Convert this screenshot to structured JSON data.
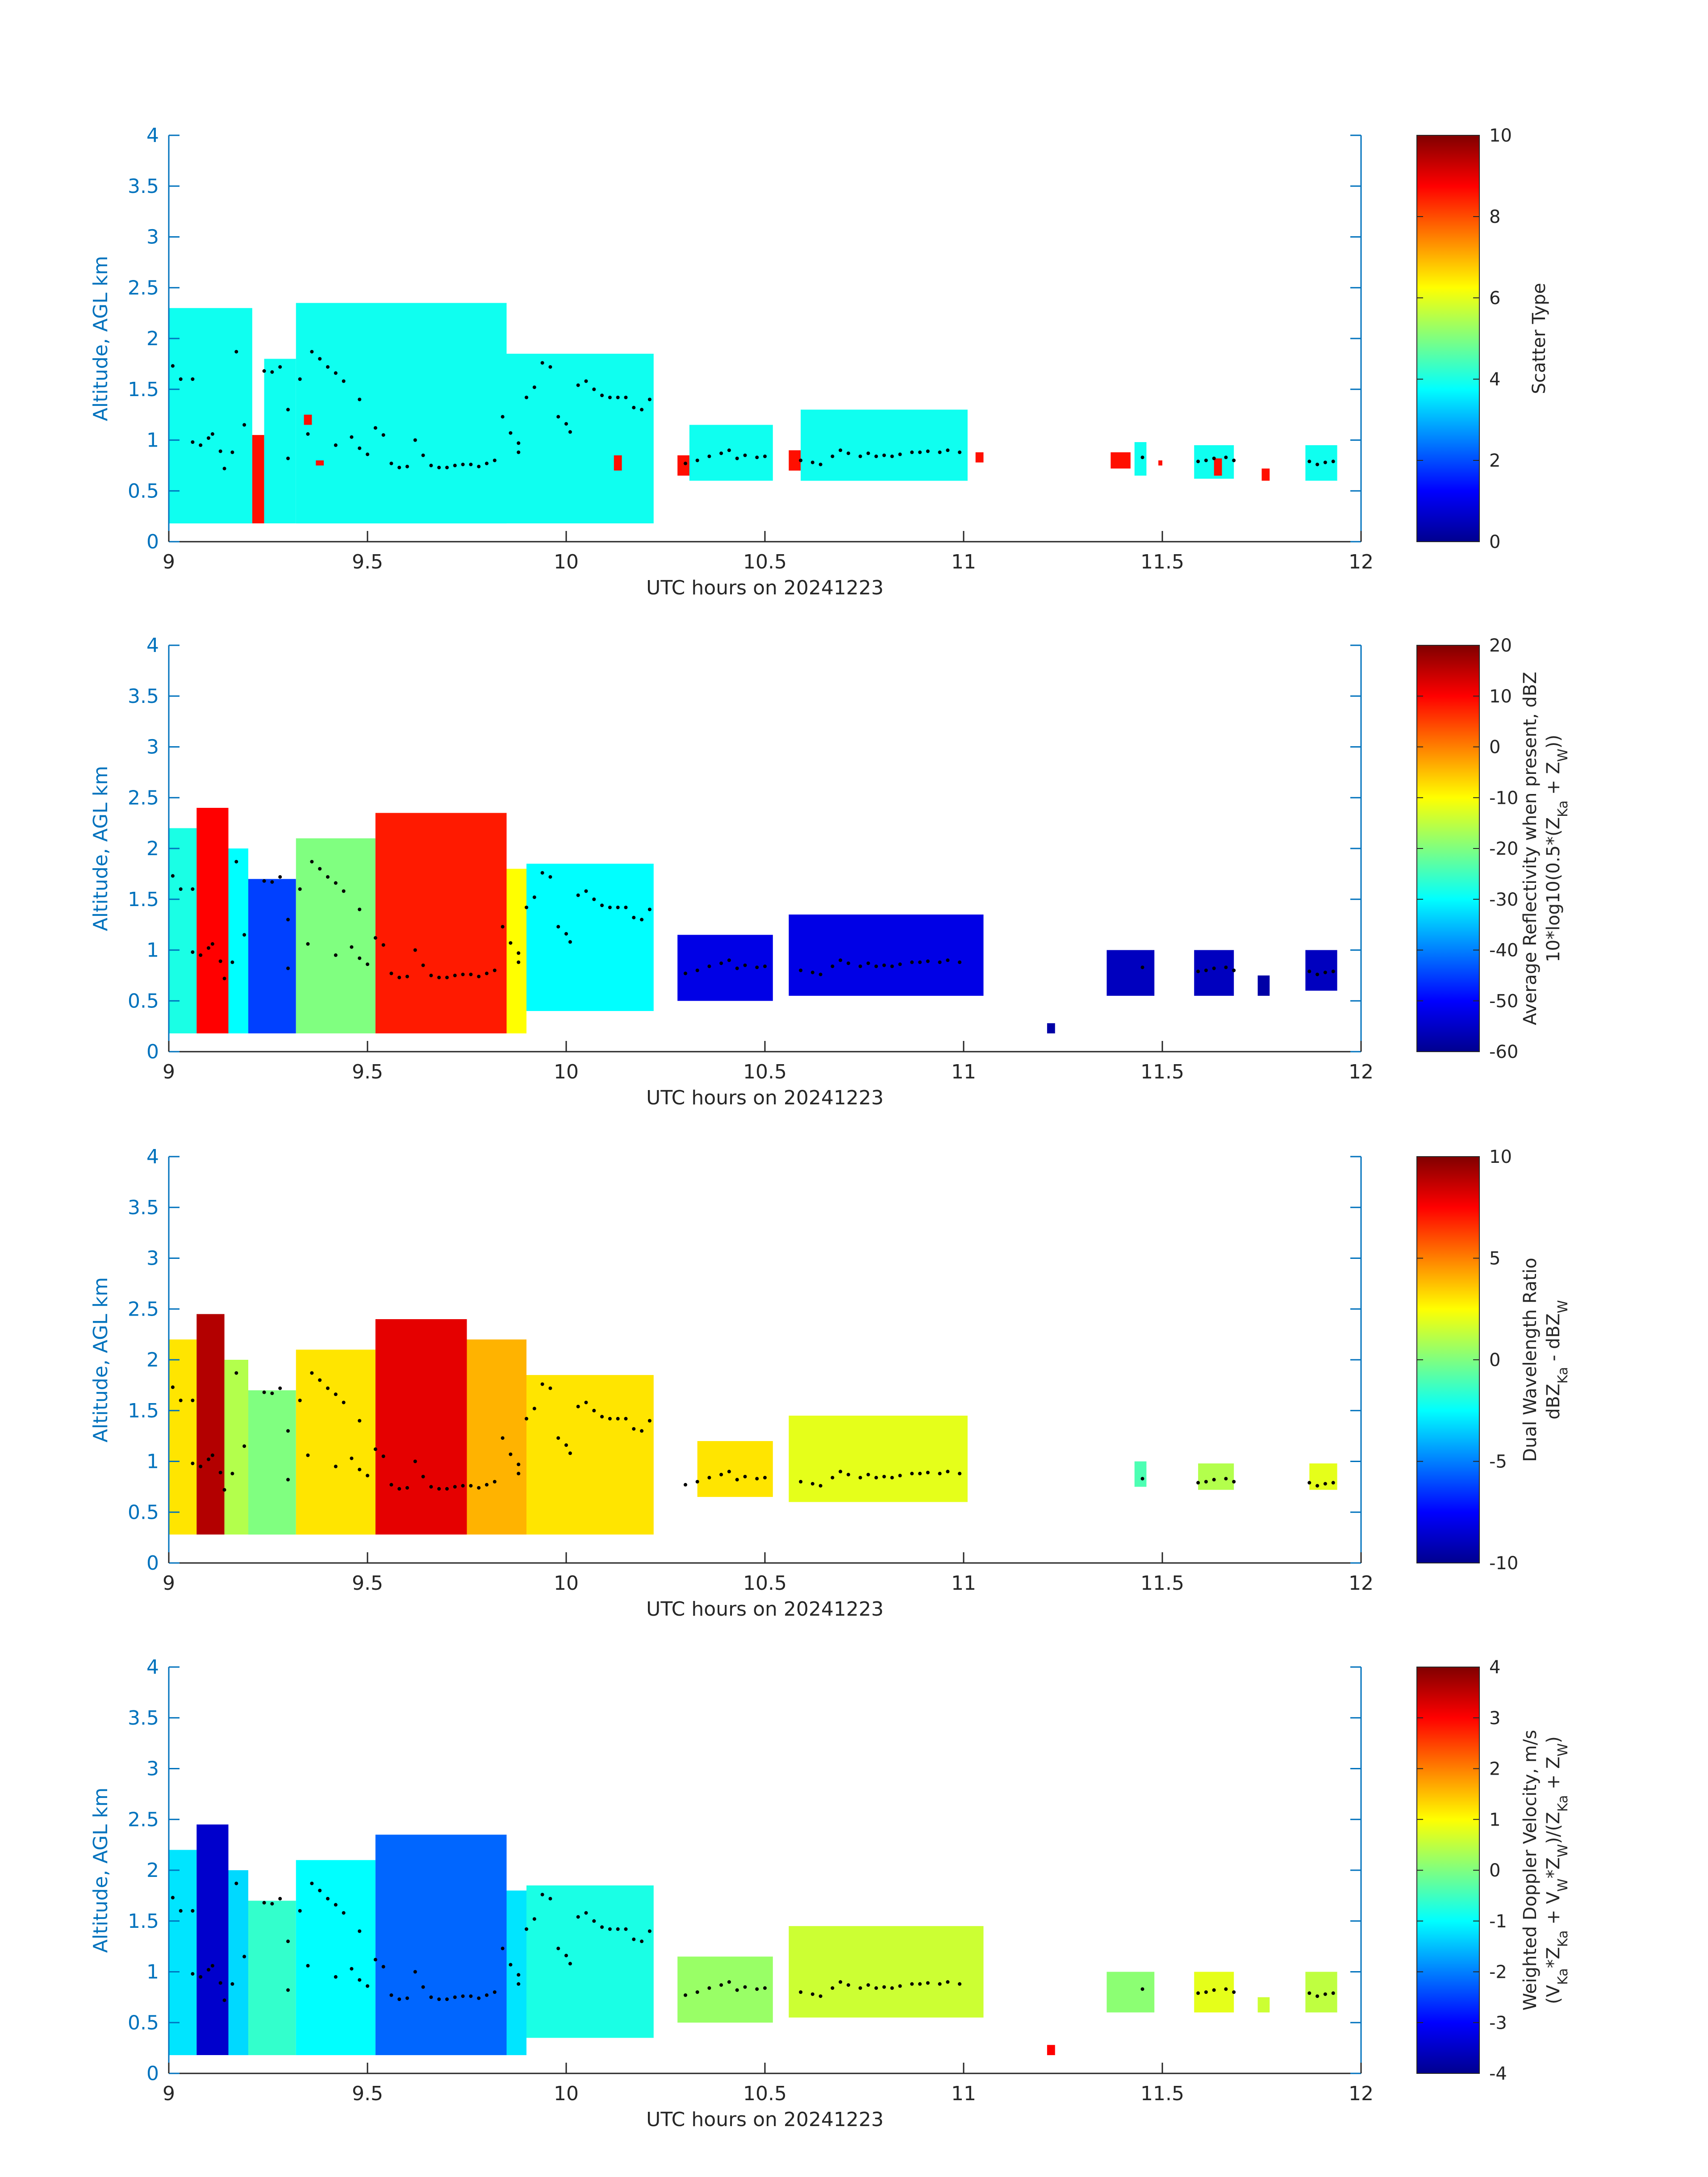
{
  "chart_data": [
    {
      "type": "heatmap",
      "panel": "scatter-type",
      "xlabel": "UTC hours on 20241223",
      "ylabel": "Altitude, AGL km",
      "xlim": [
        9,
        12
      ],
      "ylim": [
        0,
        4
      ],
      "xticks": [
        "9",
        "9.5",
        "10",
        "10.5",
        "11",
        "11.5",
        "12"
      ],
      "yticks": [
        "0",
        "0.5",
        "1",
        "1.5",
        "2",
        "2.5",
        "3",
        "3.5",
        "4"
      ],
      "colorbar": {
        "label_lines": [
          "Scatter Type"
        ],
        "range": [
          0,
          10
        ],
        "ticks": [
          "0",
          "2",
          "4",
          "6",
          "8",
          "10"
        ]
      },
      "cells": [
        {
          "x": [
            9.0,
            9.21
          ],
          "y": [
            0.18,
            2.3
          ],
          "value": 3.9
        },
        {
          "x": [
            9.21,
            9.24
          ],
          "y": [
            0.18,
            1.05
          ],
          "value": 8.6
        },
        {
          "x": [
            9.24,
            9.32
          ],
          "y": [
            0.18,
            1.8
          ],
          "value": 3.9
        },
        {
          "x": [
            9.32,
            9.85
          ],
          "y": [
            0.18,
            2.35
          ],
          "value": 3.9
        },
        {
          "x": [
            9.85,
            10.22
          ],
          "y": [
            0.18,
            1.85
          ],
          "value": 3.9
        },
        {
          "x": [
            9.34,
            9.36
          ],
          "y": [
            1.15,
            1.25
          ],
          "value": 8.6
        },
        {
          "x": [
            9.37,
            9.39
          ],
          "y": [
            0.75,
            0.8
          ],
          "value": 8.6
        },
        {
          "x": [
            10.12,
            10.14
          ],
          "y": [
            0.7,
            0.85
          ],
          "value": 8.6
        },
        {
          "x": [
            10.28,
            10.31
          ],
          "y": [
            0.65,
            0.85
          ],
          "value": 8.6
        },
        {
          "x": [
            10.31,
            10.52
          ],
          "y": [
            0.6,
            1.15
          ],
          "value": 3.9
        },
        {
          "x": [
            10.56,
            10.59
          ],
          "y": [
            0.7,
            0.9
          ],
          "value": 8.6
        },
        {
          "x": [
            10.59,
            11.01
          ],
          "y": [
            0.6,
            1.3
          ],
          "value": 3.9
        },
        {
          "x": [
            11.03,
            11.05
          ],
          "y": [
            0.78,
            0.88
          ],
          "value": 8.6
        },
        {
          "x": [
            11.37,
            11.42
          ],
          "y": [
            0.72,
            0.88
          ],
          "value": 8.6
        },
        {
          "x": [
            11.43,
            11.46
          ],
          "y": [
            0.65,
            0.98
          ],
          "value": 3.9
        },
        {
          "x": [
            11.49,
            11.5
          ],
          "y": [
            0.75,
            0.8
          ],
          "value": 8.6
        },
        {
          "x": [
            11.58,
            11.68
          ],
          "y": [
            0.62,
            0.95
          ],
          "value": 3.9
        },
        {
          "x": [
            11.63,
            11.65
          ],
          "y": [
            0.65,
            0.82
          ],
          "value": 8.6
        },
        {
          "x": [
            11.75,
            11.77
          ],
          "y": [
            0.6,
            0.72
          ],
          "value": 8.6
        },
        {
          "x": [
            11.86,
            11.94
          ],
          "y": [
            0.6,
            0.95
          ],
          "value": 3.9
        }
      ]
    },
    {
      "type": "heatmap",
      "panel": "average-reflectivity",
      "xlabel": "UTC hours on 20241223",
      "ylabel": "Altitude, AGL km",
      "xlim": [
        9,
        12
      ],
      "ylim": [
        0,
        4
      ],
      "xticks": [
        "9",
        "9.5",
        "10",
        "10.5",
        "11",
        "11.5",
        "12"
      ],
      "yticks": [
        "0",
        "0.5",
        "1",
        "1.5",
        "2",
        "2.5",
        "3",
        "3.5",
        "4"
      ],
      "colorbar": {
        "label_lines": [
          "Average Reflectivity when present, dBZ",
          "10*log10(0.5*(Z_Ka + Z_W))"
        ],
        "range": [
          -60,
          20
        ],
        "ticks": [
          "-60",
          "-50",
          "-40",
          "-30",
          "-20",
          "-10",
          "0",
          "10",
          "20"
        ]
      },
      "cells": [
        {
          "x": [
            9.0,
            9.07
          ],
          "y": [
            0.18,
            2.2
          ],
          "value": -28
        },
        {
          "x": [
            9.07,
            9.15
          ],
          "y": [
            0.18,
            2.4
          ],
          "value": 10
        },
        {
          "x": [
            9.15,
            9.2
          ],
          "y": [
            0.18,
            2.0
          ],
          "value": -30
        },
        {
          "x": [
            9.2,
            9.32
          ],
          "y": [
            0.18,
            1.7
          ],
          "value": -45
        },
        {
          "x": [
            9.32,
            9.52
          ],
          "y": [
            0.18,
            2.1
          ],
          "value": -20
        },
        {
          "x": [
            9.52,
            9.85
          ],
          "y": [
            0.18,
            2.35
          ],
          "value": 8
        },
        {
          "x": [
            9.85,
            9.9
          ],
          "y": [
            0.18,
            1.8
          ],
          "value": -10
        },
        {
          "x": [
            9.9,
            10.22
          ],
          "y": [
            0.4,
            1.85
          ],
          "value": -30
        },
        {
          "x": [
            10.28,
            10.52
          ],
          "y": [
            0.5,
            1.15
          ],
          "value": -52
        },
        {
          "x": [
            10.56,
            11.05
          ],
          "y": [
            0.55,
            1.35
          ],
          "value": -52
        },
        {
          "x": [
            11.21,
            11.23
          ],
          "y": [
            0.18,
            0.28
          ],
          "value": -57
        },
        {
          "x": [
            11.36,
            11.48
          ],
          "y": [
            0.55,
            1.0
          ],
          "value": -55
        },
        {
          "x": [
            11.58,
            11.68
          ],
          "y": [
            0.55,
            1.0
          ],
          "value": -55
        },
        {
          "x": [
            11.74,
            11.77
          ],
          "y": [
            0.55,
            0.75
          ],
          "value": -57
        },
        {
          "x": [
            11.86,
            11.94
          ],
          "y": [
            0.6,
            1.0
          ],
          "value": -55
        }
      ]
    },
    {
      "type": "heatmap",
      "panel": "dual-wavelength-ratio",
      "xlabel": "UTC hours on 20241223",
      "ylabel": "Altitude, AGL km",
      "xlim": [
        9,
        12
      ],
      "ylim": [
        0,
        4
      ],
      "xticks": [
        "9",
        "9.5",
        "10",
        "10.5",
        "11",
        "11.5",
        "12"
      ],
      "yticks": [
        "0",
        "0.5",
        "1",
        "1.5",
        "2",
        "2.5",
        "3",
        "3.5",
        "4"
      ],
      "colorbar": {
        "label_lines": [
          "Dual Wavelength Ratio",
          "dBZ_Ka - dBZ_W"
        ],
        "range": [
          -10,
          10
        ],
        "ticks": [
          "-10",
          "-5",
          "0",
          "5",
          "10"
        ]
      },
      "cells": [
        {
          "x": [
            9.0,
            9.07
          ],
          "y": [
            0.28,
            2.2
          ],
          "value": 3
        },
        {
          "x": [
            9.07,
            9.14
          ],
          "y": [
            0.28,
            2.45
          ],
          "value": 9
        },
        {
          "x": [
            9.14,
            9.2
          ],
          "y": [
            0.28,
            2.0
          ],
          "value": 1
        },
        {
          "x": [
            9.2,
            9.32
          ],
          "y": [
            0.28,
            1.7
          ],
          "value": 0
        },
        {
          "x": [
            9.32,
            9.52
          ],
          "y": [
            0.28,
            2.1
          ],
          "value": 3
        },
        {
          "x": [
            9.52,
            9.75
          ],
          "y": [
            0.28,
            2.4
          ],
          "value": 8
        },
        {
          "x": [
            9.75,
            9.9
          ],
          "y": [
            0.28,
            2.2
          ],
          "value": 4
        },
        {
          "x": [
            9.9,
            10.22
          ],
          "y": [
            0.28,
            1.85
          ],
          "value": 3
        },
        {
          "x": [
            10.33,
            10.52
          ],
          "y": [
            0.65,
            1.2
          ],
          "value": 3
        },
        {
          "x": [
            10.56,
            11.01
          ],
          "y": [
            0.6,
            1.45
          ],
          "value": 2
        },
        {
          "x": [
            11.43,
            11.46
          ],
          "y": [
            0.75,
            1.0
          ],
          "value": -1
        },
        {
          "x": [
            11.59,
            11.68
          ],
          "y": [
            0.72,
            0.98
          ],
          "value": 1
        },
        {
          "x": [
            11.87,
            11.94
          ],
          "y": [
            0.72,
            0.98
          ],
          "value": 2
        }
      ]
    },
    {
      "type": "heatmap",
      "panel": "weighted-doppler-velocity",
      "xlabel": "UTC hours on 20241223",
      "ylabel": "Altitude, AGL km",
      "xlim": [
        9,
        12
      ],
      "ylim": [
        0,
        4
      ],
      "xticks": [
        "9",
        "9.5",
        "10",
        "10.5",
        "11",
        "11.5",
        "12"
      ],
      "yticks": [
        "0",
        "0.5",
        "1",
        "1.5",
        "2",
        "2.5",
        "3",
        "3.5",
        "4"
      ],
      "colorbar": {
        "label_lines": [
          "Weighted Doppler Velocity, m/s",
          "(V_Ka*Z_Ka + V_W*Z_W)/(Z_Ka + Z_W)"
        ],
        "range": [
          -4,
          4
        ],
        "ticks": [
          "-4",
          "-3",
          "-2",
          "-1",
          "0",
          "1",
          "2",
          "3",
          "4"
        ]
      },
      "cells": [
        {
          "x": [
            9.0,
            9.07
          ],
          "y": [
            0.18,
            2.2
          ],
          "value": -1.2
        },
        {
          "x": [
            9.07,
            9.15
          ],
          "y": [
            0.18,
            2.45
          ],
          "value": -3.4
        },
        {
          "x": [
            9.15,
            9.2
          ],
          "y": [
            0.18,
            2.0
          ],
          "value": -1.3
        },
        {
          "x": [
            9.2,
            9.32
          ],
          "y": [
            0.18,
            1.7
          ],
          "value": -0.6
        },
        {
          "x": [
            9.32,
            9.52
          ],
          "y": [
            0.18,
            2.1
          ],
          "value": -1.0
        },
        {
          "x": [
            9.52,
            9.85
          ],
          "y": [
            0.18,
            2.35
          ],
          "value": -2.2
        },
        {
          "x": [
            9.85,
            9.9
          ],
          "y": [
            0.18,
            1.8
          ],
          "value": -1.2
        },
        {
          "x": [
            9.9,
            10.22
          ],
          "y": [
            0.35,
            1.85
          ],
          "value": -0.8
        },
        {
          "x": [
            10.28,
            10.52
          ],
          "y": [
            0.5,
            1.15
          ],
          "value": 0.2
        },
        {
          "x": [
            10.56,
            11.05
          ],
          "y": [
            0.55,
            1.45
          ],
          "value": 0.6
        },
        {
          "x": [
            11.21,
            11.23
          ],
          "y": [
            0.18,
            0.28
          ],
          "value": 3.0
        },
        {
          "x": [
            11.36,
            11.48
          ],
          "y": [
            0.6,
            1.0
          ],
          "value": 0.1
        },
        {
          "x": [
            11.58,
            11.68
          ],
          "y": [
            0.6,
            1.0
          ],
          "value": 0.8
        },
        {
          "x": [
            11.74,
            11.77
          ],
          "y": [
            0.6,
            0.75
          ],
          "value": 0.6
        },
        {
          "x": [
            11.86,
            11.94
          ],
          "y": [
            0.6,
            1.0
          ],
          "value": 0.5
        }
      ]
    }
  ],
  "overlay": {
    "marker": "black dots",
    "points": [
      [
        9.01,
        1.73
      ],
      [
        9.03,
        1.6
      ],
      [
        9.06,
        1.6
      ],
      [
        9.06,
        0.98
      ],
      [
        9.08,
        0.95
      ],
      [
        9.1,
        1.02
      ],
      [
        9.11,
        1.06
      ],
      [
        9.13,
        0.89
      ],
      [
        9.14,
        0.72
      ],
      [
        9.16,
        0.88
      ],
      [
        9.17,
        1.87
      ],
      [
        9.19,
        1.15
      ],
      [
        9.24,
        1.68
      ],
      [
        9.26,
        1.67
      ],
      [
        9.28,
        1.72
      ],
      [
        9.3,
        1.3
      ],
      [
        9.3,
        0.82
      ],
      [
        9.33,
        1.6
      ],
      [
        9.35,
        1.06
      ],
      [
        9.36,
        1.87
      ],
      [
        9.38,
        1.8
      ],
      [
        9.4,
        1.72
      ],
      [
        9.42,
        1.66
      ],
      [
        9.42,
        0.95
      ],
      [
        9.44,
        1.58
      ],
      [
        9.46,
        1.03
      ],
      [
        9.48,
        1.4
      ],
      [
        9.48,
        0.92
      ],
      [
        9.5,
        0.86
      ],
      [
        9.52,
        1.12
      ],
      [
        9.54,
        1.05
      ],
      [
        9.56,
        0.77
      ],
      [
        9.58,
        0.73
      ],
      [
        9.6,
        0.74
      ],
      [
        9.62,
        1.0
      ],
      [
        9.64,
        0.85
      ],
      [
        9.66,
        0.75
      ],
      [
        9.68,
        0.73
      ],
      [
        9.7,
        0.73
      ],
      [
        9.72,
        0.75
      ],
      [
        9.74,
        0.76
      ],
      [
        9.76,
        0.76
      ],
      [
        9.78,
        0.74
      ],
      [
        9.8,
        0.77
      ],
      [
        9.82,
        0.8
      ],
      [
        9.84,
        1.23
      ],
      [
        9.86,
        1.07
      ],
      [
        9.88,
        0.97
      ],
      [
        9.88,
        0.88
      ],
      [
        9.9,
        1.42
      ],
      [
        9.92,
        1.52
      ],
      [
        9.94,
        1.76
      ],
      [
        9.96,
        1.72
      ],
      [
        9.98,
        1.23
      ],
      [
        10.0,
        1.16
      ],
      [
        10.01,
        1.08
      ],
      [
        10.03,
        1.54
      ],
      [
        10.05,
        1.58
      ],
      [
        10.07,
        1.5
      ],
      [
        10.09,
        1.44
      ],
      [
        10.11,
        1.42
      ],
      [
        10.13,
        1.42
      ],
      [
        10.15,
        1.42
      ],
      [
        10.17,
        1.32
      ],
      [
        10.19,
        1.3
      ],
      [
        10.21,
        1.4
      ],
      [
        10.3,
        0.77
      ],
      [
        10.33,
        0.8
      ],
      [
        10.36,
        0.84
      ],
      [
        10.39,
        0.87
      ],
      [
        10.41,
        0.9
      ],
      [
        10.43,
        0.82
      ],
      [
        10.45,
        0.85
      ],
      [
        10.48,
        0.83
      ],
      [
        10.5,
        0.84
      ],
      [
        10.59,
        0.8
      ],
      [
        10.62,
        0.78
      ],
      [
        10.64,
        0.76
      ],
      [
        10.67,
        0.84
      ],
      [
        10.69,
        0.9
      ],
      [
        10.71,
        0.87
      ],
      [
        10.74,
        0.84
      ],
      [
        10.76,
        0.87
      ],
      [
        10.78,
        0.84
      ],
      [
        10.8,
        0.85
      ],
      [
        10.82,
        0.84
      ],
      [
        10.84,
        0.86
      ],
      [
        10.87,
        0.88
      ],
      [
        10.89,
        0.88
      ],
      [
        10.91,
        0.89
      ],
      [
        10.94,
        0.88
      ],
      [
        10.96,
        0.9
      ],
      [
        10.99,
        0.88
      ],
      [
        11.45,
        0.83
      ],
      [
        11.59,
        0.79
      ],
      [
        11.61,
        0.8
      ],
      [
        11.63,
        0.82
      ],
      [
        11.66,
        0.83
      ],
      [
        11.68,
        0.8
      ],
      [
        11.87,
        0.79
      ],
      [
        11.89,
        0.76
      ],
      [
        11.91,
        0.78
      ],
      [
        11.93,
        0.79
      ]
    ]
  }
}
